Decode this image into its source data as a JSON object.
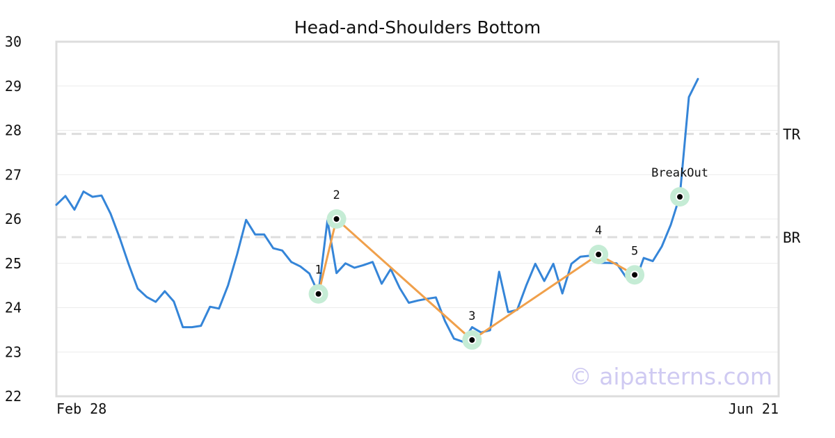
{
  "chart_data": {
    "type": "line",
    "title": "Head-and-Shoulders Bottom",
    "xlabel": "",
    "ylabel": "",
    "x_start_label": "Feb 28",
    "x_end_label": "Jun 21",
    "ylim": [
      22,
      30
    ],
    "yticks": [
      22,
      23,
      24,
      25,
      26,
      27,
      28,
      29,
      30
    ],
    "grid": true,
    "series": [
      {
        "name": "",
        "color": "#3585d8",
        "values": [
          26.32,
          26.52,
          26.21,
          26.62,
          26.5,
          26.53,
          26.12,
          25.58,
          24.98,
          24.43,
          24.24,
          24.13,
          24.37,
          24.14,
          23.56,
          23.56,
          23.59,
          24.02,
          23.98,
          24.5,
          25.2,
          25.98,
          25.65,
          25.65,
          25.34,
          25.29,
          25.03,
          24.93,
          24.77,
          24.32,
          25.97,
          24.78,
          25.0,
          24.9,
          24.96,
          25.03,
          24.54,
          24.87,
          24.44,
          24.11,
          24.16,
          24.2,
          24.23,
          23.7,
          23.3,
          23.23,
          23.56,
          23.44,
          23.49,
          24.81,
          23.9,
          23.95,
          24.5,
          24.99,
          24.6,
          24.99,
          24.32,
          24.99,
          25.15,
          25.17,
          25.01,
          25.01,
          25.0,
          24.7,
          24.55,
          25.12,
          25.05,
          25.38,
          25.87,
          26.52,
          28.75,
          29.16
        ]
      }
    ],
    "levels": [
      {
        "label": "TR",
        "value": 27.92,
        "color": "#dddddd"
      },
      {
        "label": "BR",
        "value": 25.59,
        "color": "#dddddd"
      }
    ],
    "pattern_points": [
      {
        "label": "1",
        "index": 29,
        "value": 24.31
      },
      {
        "label": "2",
        "index": 31,
        "value": 26.0
      },
      {
        "label": "3",
        "index": 46,
        "value": 23.27
      },
      {
        "label": "4",
        "index": 60,
        "value": 25.2
      },
      {
        "label": "5",
        "index": 64,
        "value": 24.74
      }
    ],
    "breakout": {
      "label": "BreakOut",
      "index": 69,
      "value": 26.5
    },
    "pattern_line_color": "#f0a04b",
    "marker_halo_color": "#c5ecd5",
    "watermark": "© aipatterns.com"
  }
}
